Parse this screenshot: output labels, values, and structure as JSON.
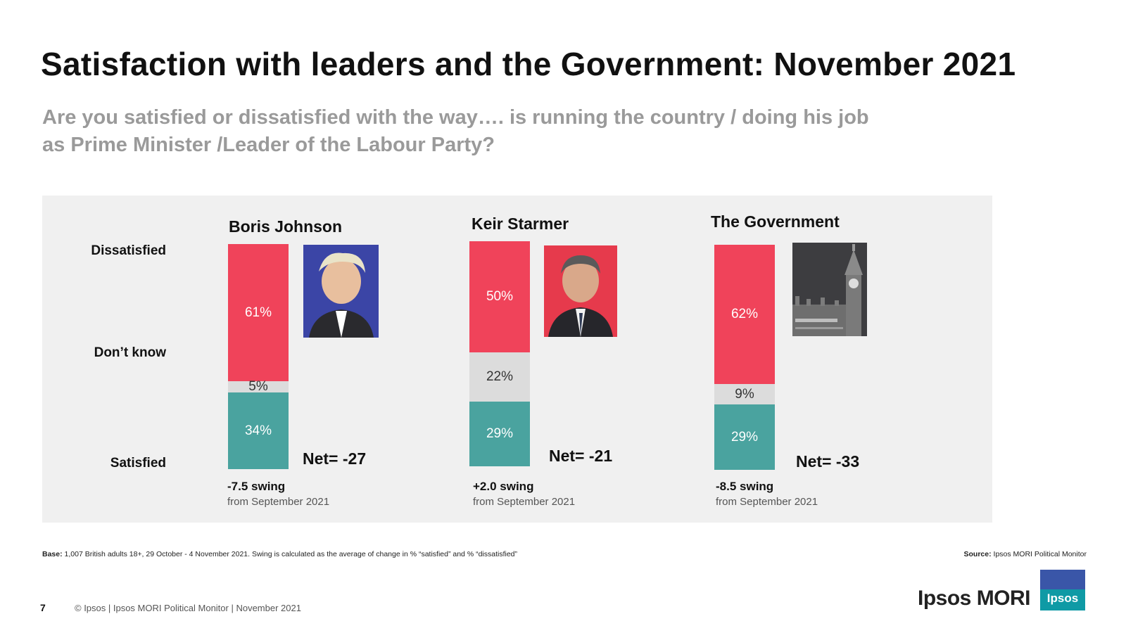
{
  "header": {
    "title": "Satisfaction with leaders and the Government: November 2021",
    "question_line1": "Are you satisfied or dissatisfied with the way…. is running the country / doing his job",
    "question_line2": "as Prime Minister /Leader of the Labour Party?"
  },
  "row_labels": {
    "dissatisfied": "Dissatisfied",
    "dont_know": "Don’t know",
    "satisfied": "Satisfied"
  },
  "chart_data": {
    "type": "bar",
    "stacked": true,
    "title": "Satisfaction with leaders and the Government: November 2021",
    "categories": [
      "Boris Johnson",
      "Keir Starmer",
      "The Government"
    ],
    "series": [
      {
        "name": "Dissatisfied",
        "values": [
          61,
          50,
          62
        ],
        "color": "#f0435a"
      },
      {
        "name": "Don’t know",
        "values": [
          5,
          22,
          9
        ],
        "color": "#dcdcdc"
      },
      {
        "name": "Satisfied",
        "values": [
          34,
          29,
          29
        ],
        "color": "#4aa39f"
      }
    ],
    "data_labels": [
      {
        "dissatisfied": "61%",
        "dont_know": "5%",
        "satisfied": "34%"
      },
      {
        "dissatisfied": "50%",
        "dont_know": "22%",
        "satisfied": "29%"
      },
      {
        "dissatisfied": "62%",
        "dont_know": "9%",
        "satisfied": "29%"
      }
    ],
    "net": [
      "Net= -27",
      "Net= -21",
      "Net= -33"
    ],
    "swing": [
      "-7.5 swing",
      "+2.0 swing",
      "-8.5 swing"
    ],
    "swing_from": [
      "from September 2021",
      "from September 2021",
      "from September 2021"
    ],
    "ylim": [
      0,
      100
    ],
    "ylabel": "%"
  },
  "footer": {
    "base_label": "Base:",
    "base_text": "1,007 British adults 18+, 29 October - 4 November 2021. Swing is calculated as the average of change in % “satisfied” and % “dissatisfied”",
    "source_label": "Source:",
    "source_text": "Ipsos MORI Political Monitor",
    "page_number": "7",
    "copyright": "© Ipsos | Ipsos MORI Political Monitor | November 2021",
    "brand": "Ipsos MORI",
    "logo_text": "Ipsos"
  },
  "colors": {
    "dissatisfied": "#f0435a",
    "dont_know": "#dcdcdc",
    "satisfied": "#4aa39f",
    "panel": "#f0f0f0"
  }
}
